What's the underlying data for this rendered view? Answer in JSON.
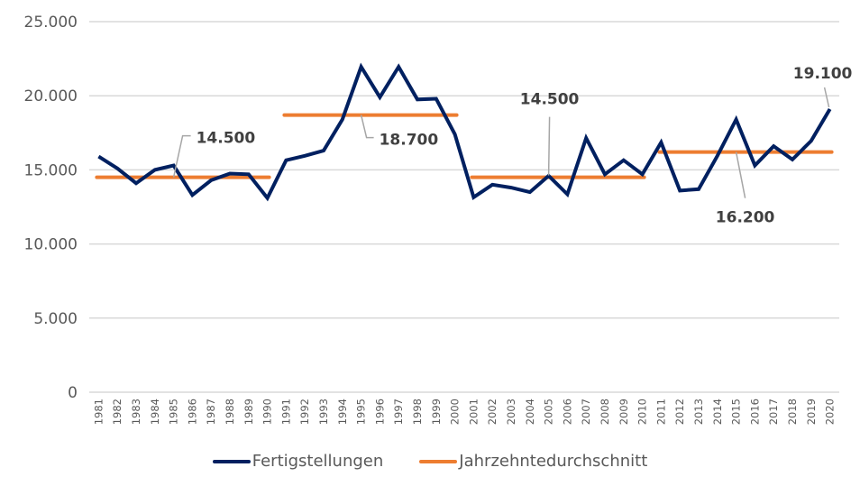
{
  "chart_data": {
    "type": "line",
    "title": "",
    "xlabel": "",
    "ylabel": "",
    "ylim": [
      0,
      25000
    ],
    "yticks": [
      0,
      5000,
      10000,
      15000,
      20000,
      25000
    ],
    "ytick_labels": [
      "0",
      "5.000",
      "10.000",
      "15.000",
      "20.000",
      "25.000"
    ],
    "grid": true,
    "legend_position": "bottom",
    "categories": [
      "1981",
      "1982",
      "1983",
      "1984",
      "1985",
      "1986",
      "1987",
      "1988",
      "1989",
      "1990",
      "1991",
      "1992",
      "1993",
      "1994",
      "1995",
      "1996",
      "1997",
      "1998",
      "1999",
      "2000",
      "2001",
      "2002",
      "2003",
      "2004",
      "2005",
      "2006",
      "2007",
      "2008",
      "2009",
      "2010",
      "2011",
      "2012",
      "2013",
      "2014",
      "2015",
      "2016",
      "2017",
      "2018",
      "2019",
      "2020"
    ],
    "series": [
      {
        "name": "Fertigstellungen",
        "color": "#002060",
        "values": [
          15900,
          15100,
          14100,
          15000,
          15300,
          13300,
          14300,
          14750,
          14700,
          13100,
          15650,
          15950,
          16300,
          18400,
          21950,
          19900,
          21950,
          19750,
          19800,
          17400,
          13150,
          14000,
          13800,
          13500,
          14600,
          13350,
          17150,
          14700,
          15650,
          14700,
          16850,
          13600,
          13700,
          15950,
          18400,
          15300,
          16600,
          15700,
          16950,
          19100
        ]
      },
      {
        "name": "Jahrzehntedurchschnitt",
        "color": "#ED7D31",
        "segments": [
          {
            "from": "1981",
            "to": "1990",
            "value": 14500
          },
          {
            "from": "1991",
            "to": "2000",
            "value": 18700
          },
          {
            "from": "2001",
            "to": "2010",
            "value": 14500
          },
          {
            "from": "2011",
            "to": "2020",
            "value": 16200
          }
        ]
      }
    ],
    "annotations": [
      {
        "text": "14.500",
        "anchor": "1985",
        "value": 14500
      },
      {
        "text": "18.700",
        "anchor": "1995",
        "value": 18700
      },
      {
        "text": "14.500",
        "anchor": "2005",
        "value": 14500
      },
      {
        "text": "16.200",
        "anchor": "2015",
        "value": 16200
      },
      {
        "text": "19.100",
        "anchor": "2020",
        "value": 19100
      }
    ]
  }
}
